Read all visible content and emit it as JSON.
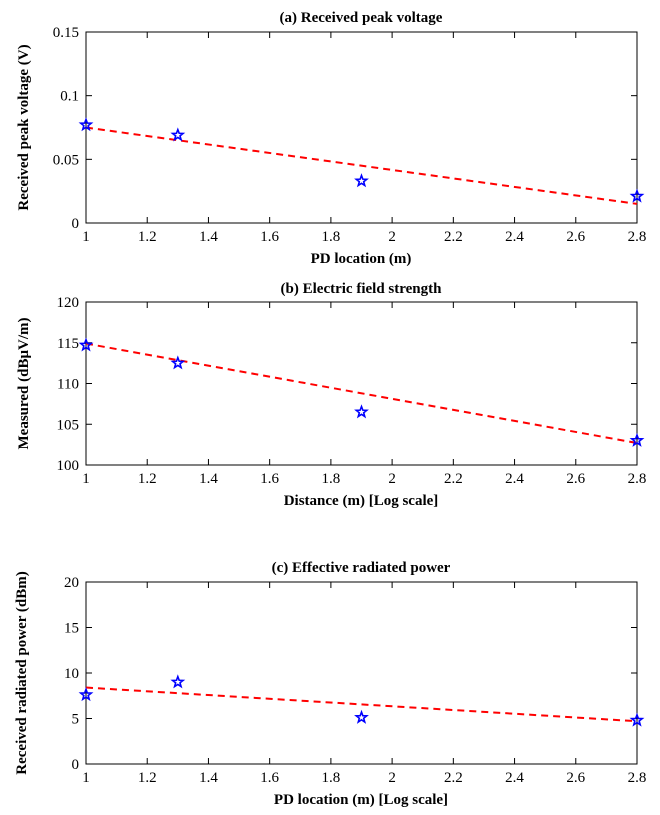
{
  "chart_data": [
    {
      "type": "scatter",
      "title": "(a) Received peak voltage",
      "xlabel": "PD location (m)",
      "ylabel": "Received  peak voltage (V)",
      "xlim": [
        1,
        2.8
      ],
      "ylim": [
        0,
        0.15
      ],
      "xticks": [
        1,
        1.2,
        1.4,
        1.6,
        1.8,
        2,
        2.2,
        2.4,
        2.6,
        2.8
      ],
      "xtick_labels": [
        "1",
        "1.2",
        "1.4",
        "1.6",
        "1.8",
        "2",
        "2.2",
        "2.4",
        "2.6",
        "2.8"
      ],
      "yticks": [
        0,
        0.05,
        0.1,
        0.15
      ],
      "ytick_labels": [
        "0",
        "0.05",
        "0.1",
        "0.15"
      ],
      "grid": false,
      "series": [
        {
          "x": [
            1,
            1.3,
            1.9,
            2.8
          ],
          "y": [
            0.077,
            0.069,
            0.033,
            0.021
          ],
          "marker": "star",
          "color": "#0000ff"
        }
      ],
      "trend_line": {
        "x": [
          1,
          2.8
        ],
        "y": [
          0.075,
          0.015
        ],
        "style": "dashed",
        "color": "#ff0000"
      }
    },
    {
      "type": "scatter",
      "title": "(b) Electric field strength",
      "xlabel": "Distance (m) [Log scale]",
      "ylabel": "Measured (dBμV/m)",
      "xscale": "log",
      "xlim": [
        1,
        2.8
      ],
      "ylim": [
        100,
        120
      ],
      "xticks": [
        1,
        1.2,
        1.4,
        1.6,
        1.8,
        2,
        2.2,
        2.4,
        2.6,
        2.8
      ],
      "xtick_labels": [
        "1",
        "1.2",
        "1.4",
        "1.6",
        "1.8",
        "2",
        "2.2",
        "2.4",
        "2.6",
        "2.8"
      ],
      "yticks": [
        100,
        105,
        110,
        115,
        120
      ],
      "ytick_labels": [
        "100",
        "105",
        "110",
        "115",
        "120"
      ],
      "grid": false,
      "series": [
        {
          "x": [
            1,
            1.3,
            1.9,
            2.8
          ],
          "y": [
            114.7,
            112.5,
            106.5,
            103.0
          ],
          "marker": "star",
          "color": "#0000ff"
        }
      ],
      "trend_line": {
        "x": [
          1,
          2.8
        ],
        "y": [
          114.9,
          102.7
        ],
        "style": "dashed",
        "color": "#ff0000"
      }
    },
    {
      "type": "scatter",
      "title": "(c) Effective radiated power",
      "xlabel": "PD location (m) [Log scale]",
      "ylabel": "Received radiated power (dBm)",
      "xscale": "log",
      "xlim": [
        1,
        2.8
      ],
      "ylim": [
        0,
        20
      ],
      "xticks": [
        1,
        1.2,
        1.4,
        1.6,
        1.8,
        2,
        2.2,
        2.4,
        2.6,
        2.8
      ],
      "xtick_labels": [
        "1",
        "1.2",
        "1.4",
        "1.6",
        "1.8",
        "2",
        "2.2",
        "2.4",
        "2.6",
        "2.8"
      ],
      "yticks": [
        0,
        5,
        10,
        15,
        20
      ],
      "ytick_labels": [
        "0",
        "5",
        "10",
        "15",
        "20"
      ],
      "grid": false,
      "series": [
        {
          "x": [
            1,
            1.3,
            1.9,
            2.8
          ],
          "y": [
            7.6,
            9.0,
            5.1,
            4.8
          ],
          "marker": "star",
          "color": "#0000ff"
        }
      ],
      "trend_line": {
        "x": [
          1,
          2.8
        ],
        "y": [
          8.4,
          4.7
        ],
        "style": "dashed",
        "color": "#ff0000"
      }
    }
  ]
}
